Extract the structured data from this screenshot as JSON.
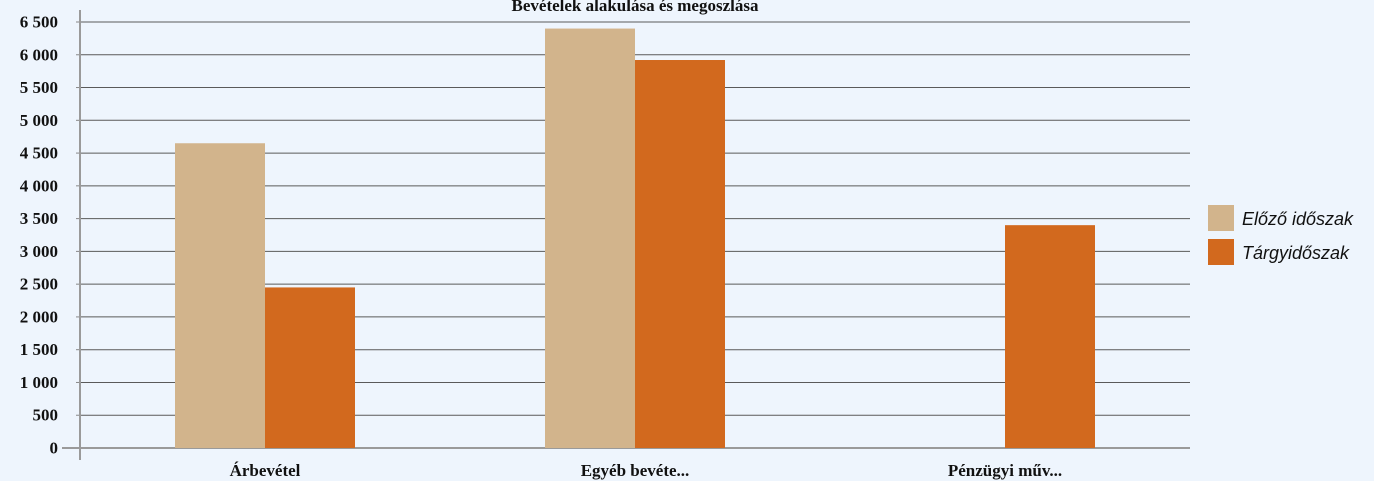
{
  "chart_data": {
    "type": "bar",
    "title": "Bevételek alakulása és megoszlása",
    "categories": [
      "Árbevétel",
      "Egyéb bevéte...",
      "Pénzügyi műv..."
    ],
    "series": [
      {
        "name": "Előző időszak",
        "values": [
          4650,
          6400,
          0
        ],
        "color": "#d2b48c"
      },
      {
        "name": "Tárgyidőszak",
        "values": [
          2450,
          5920,
          3400
        ],
        "color": "#d2691e"
      }
    ],
    "yticks": [
      "0",
      "500",
      "1 000",
      "1 500",
      "2 000",
      "2 500",
      "3 000",
      "3 500",
      "4 000",
      "4 500",
      "5 000",
      "5 500",
      "6 000",
      "6 500"
    ],
    "ylim": [
      0,
      6500
    ],
    "grid": true,
    "legend_position": "right",
    "xlabel": "",
    "ylabel": ""
  }
}
